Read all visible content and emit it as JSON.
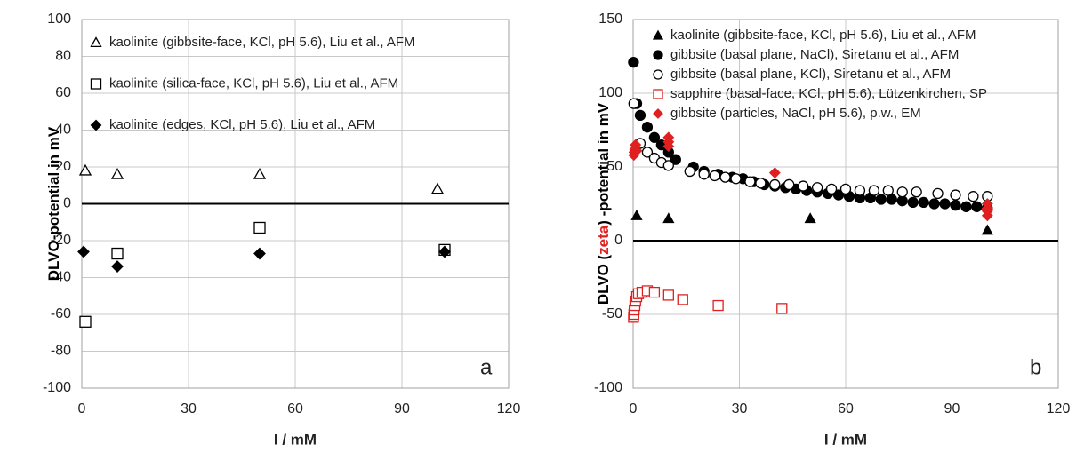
{
  "chart_data": [
    {
      "type": "scatter",
      "panel_label": "a",
      "x_label": "I / mM",
      "y_label_parts": [
        "DLVO-potential in mV"
      ],
      "xlim": [
        0,
        120
      ],
      "xticks": [
        0,
        30,
        60,
        90,
        120
      ],
      "ylim": [
        -100,
        100
      ],
      "yticks": [
        -100,
        -80,
        -60,
        -40,
        -20,
        0,
        20,
        40,
        60,
        80,
        100
      ],
      "grid": true,
      "series": [
        {
          "name": "kaolinite (gibbsite-face, KCl, pH 5.6), Liu et al., AFM",
          "color": "#000000",
          "marker": "triangle-open",
          "x": [
            1,
            10,
            50,
            100
          ],
          "values": [
            18,
            16,
            16,
            8
          ]
        },
        {
          "name": "kaolinite (silica-face, KCl, pH 5.6), Liu et al., AFM",
          "color": "#000000",
          "marker": "square-open",
          "x": [
            1,
            10,
            50,
            102
          ],
          "values": [
            -64,
            -27,
            -13,
            -25
          ]
        },
        {
          "name": "kaolinite (edges, KCl, pH 5.6), Liu et al., AFM",
          "color": "#000000",
          "marker": "diamond",
          "x": [
            0.5,
            10,
            50,
            102
          ],
          "values": [
            -26,
            -34,
            -27,
            -26
          ]
        }
      ]
    },
    {
      "type": "scatter",
      "panel_label": "b",
      "x_label": "I / mM",
      "y_label_parts": [
        "DLVO (",
        "zeta",
        ") -potential in mV"
      ],
      "y_label_colors": [
        "#000000",
        "#e02020",
        "#000000"
      ],
      "xlim": [
        0,
        120
      ],
      "xticks": [
        0,
        30,
        60,
        90,
        120
      ],
      "ylim": [
        -100,
        150
      ],
      "yticks": [
        -100,
        -50,
        0,
        50,
        100,
        150
      ],
      "grid": true,
      "series": [
        {
          "name": "kaolinite (gibbsite-face, KCl, pH 5.6), Liu et al., AFM",
          "color": "#000000",
          "marker": "triangle",
          "x": [
            1,
            10,
            50,
            100
          ],
          "values": [
            17,
            15,
            15,
            7
          ]
        },
        {
          "name": "gibbsite (basal plane, NaCl), Siretanu et al., AFM",
          "color": "#000000",
          "marker": "circle",
          "x": [
            0.1,
            1,
            2,
            4,
            6,
            8,
            10,
            12,
            17,
            20,
            24,
            28,
            31,
            34,
            37,
            40,
            43,
            46,
            49,
            52,
            55,
            58,
            61,
            64,
            67,
            70,
            73,
            76,
            79,
            82,
            85,
            88,
            91,
            94,
            97,
            100
          ],
          "values": [
            121,
            93,
            85,
            77,
            70,
            65,
            60,
            55,
            50,
            47,
            45,
            43,
            42,
            40,
            38,
            37,
            36,
            35,
            34,
            33,
            32,
            31,
            30,
            29,
            29,
            28,
            28,
            27,
            26,
            26,
            25,
            25,
            24,
            23,
            23,
            22
          ]
        },
        {
          "name": "gibbsite (basal plane, KCl), Siretanu et al., AFM",
          "color": "#000000",
          "marker": "circle-open",
          "x": [
            0.2,
            2,
            4,
            6,
            8,
            10,
            16,
            20,
            23,
            26,
            29,
            33,
            36,
            40,
            44,
            48,
            52,
            56,
            60,
            64,
            68,
            72,
            76,
            80,
            86,
            91,
            96,
            100
          ],
          "values": [
            93,
            66,
            60,
            56,
            53,
            51,
            47,
            45,
            44,
            43,
            42,
            40,
            39,
            38,
            38,
            37,
            36,
            35,
            35,
            34,
            34,
            34,
            33,
            33,
            32,
            31,
            30,
            30
          ]
        },
        {
          "name": "sapphire (basal-face, KCl, pH 5.6), Lützenkirchen, SP",
          "color": "#e02020",
          "marker": "square-open",
          "x": [
            0.1,
            0.2,
            0.3,
            0.5,
            0.7,
            1,
            1.5,
            2.5,
            4,
            6,
            10,
            14,
            24,
            42
          ],
          "values": [
            -52,
            -50,
            -47,
            -44,
            -41,
            -38,
            -36,
            -35,
            -34,
            -35,
            -37,
            -40,
            -44,
            -46
          ]
        },
        {
          "name": "gibbsite (particles, NaCl, pH 5.6), p.w., EM",
          "color": "#e02020",
          "marker": "diamond",
          "x": [
            0.2,
            0.3,
            0.5,
            0.7,
            1,
            10,
            10,
            10,
            40,
            100,
            100,
            100,
            100
          ],
          "values": [
            58,
            60,
            62,
            65,
            61,
            70,
            67,
            64,
            46,
            25,
            22,
            20,
            17
          ]
        }
      ]
    }
  ]
}
